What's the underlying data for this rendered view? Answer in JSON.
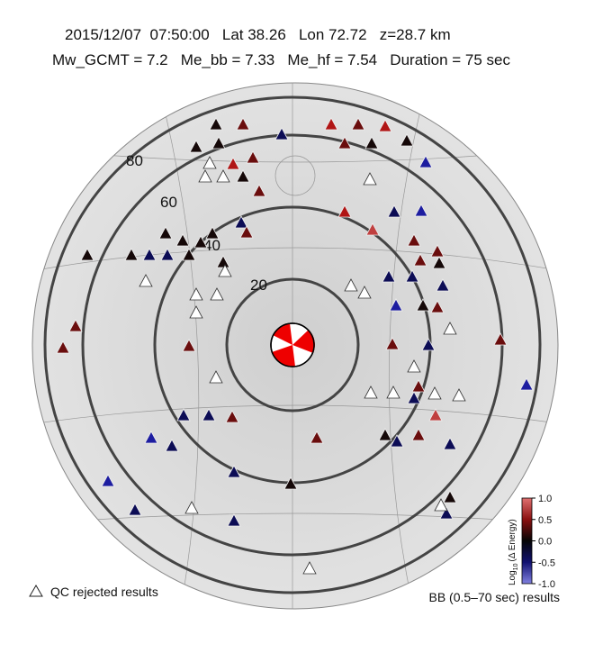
{
  "header": {
    "line1": "2015/12/07  07:50:00   Lat 38.26   Lon 72.72   z=28.7 km",
    "line2": "Mw_GCMT = 7.2   Me_bb = 7.33   Me_hf = 7.54   Duration = 75 sec"
  },
  "map": {
    "distance_labels": [
      20,
      40,
      60,
      80
    ]
  },
  "colorbar": {
    "label": "Log",
    "label_sub": "10",
    "label_rest": "(Δ Energy)",
    "range": [
      -1,
      1
    ],
    "ticks": [
      {
        "value": 1,
        "label": "1.0"
      },
      {
        "value": 0.5,
        "label": "0.5"
      },
      {
        "value": 0,
        "label": "0.0"
      },
      {
        "value": -0.5,
        "label": "-0.5"
      },
      {
        "value": -1,
        "label": "-1.0"
      }
    ]
  },
  "legend": {
    "qc": "QC rejected results",
    "bb": "BB (0.5–70 sec) results"
  }
}
